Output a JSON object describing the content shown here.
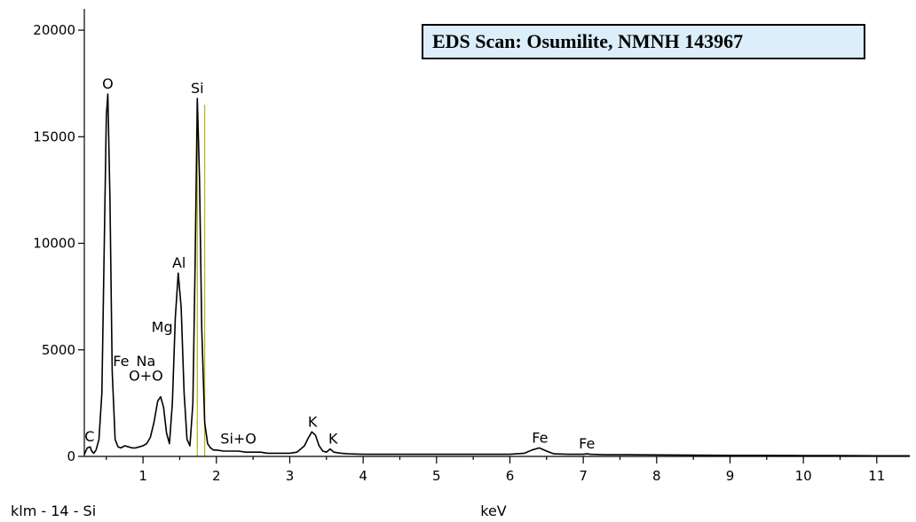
{
  "chart_data": {
    "type": "line",
    "title": "EDS Scan:  Osumilite, NMNH 143967",
    "xlabel": "keV",
    "ylabel": "",
    "footer_left": "klm - 14 - Si",
    "xlim": [
      0.2,
      11.45
    ],
    "ylim": [
      0,
      21000
    ],
    "xticks": [
      1,
      2,
      3,
      4,
      5,
      6,
      7,
      8,
      9,
      10,
      11
    ],
    "yticks": [
      0,
      5000,
      10000,
      15000,
      20000
    ],
    "grid": false,
    "colors": {
      "spectrum": "#000000",
      "si_marker": "#b8b81e",
      "title_box": "#dbeefa"
    },
    "series": [
      {
        "values_note": "",
        "x": [
          0.2,
          0.24,
          0.28,
          0.3,
          0.33,
          0.36,
          0.4,
          0.44,
          0.47,
          0.5,
          0.52,
          0.55,
          0.58,
          0.62,
          0.66,
          0.7,
          0.75,
          0.8,
          0.85,
          0.9,
          0.95,
          1.0,
          1.05,
          1.1,
          1.15,
          1.2,
          1.24,
          1.28,
          1.32,
          1.36,
          1.4,
          1.44,
          1.48,
          1.52,
          1.56,
          1.6,
          1.64,
          1.68,
          1.71,
          1.74,
          1.77,
          1.8,
          1.84,
          1.88,
          1.92,
          1.96,
          2.0,
          2.1,
          2.2,
          2.3,
          2.4,
          2.5,
          2.6,
          2.7,
          2.8,
          2.9,
          3.0,
          3.1,
          3.2,
          3.25,
          3.3,
          3.35,
          3.4,
          3.45,
          3.5,
          3.55,
          3.6,
          3.7,
          3.8,
          4.0,
          4.5,
          5.0,
          5.5,
          6.0,
          6.2,
          6.3,
          6.4,
          6.5,
          6.6,
          6.8,
          7.0,
          7.05,
          7.1,
          7.3,
          7.6,
          8.0,
          8.5,
          9.0,
          9.5,
          10.0,
          10.5,
          11.0,
          11.45
        ],
        "y": [
          100,
          400,
          450,
          250,
          150,
          300,
          800,
          3000,
          9500,
          16000,
          17000,
          12000,
          4000,
          800,
          450,
          400,
          500,
          450,
          400,
          400,
          450,
          500,
          600,
          900,
          1600,
          2600,
          2800,
          2300,
          1100,
          600,
          2500,
          6500,
          8600,
          7000,
          3000,
          800,
          500,
          2500,
          9000,
          16800,
          13000,
          6000,
          1600,
          600,
          400,
          300,
          300,
          250,
          250,
          250,
          200,
          200,
          200,
          150,
          150,
          150,
          150,
          200,
          500,
          850,
          1150,
          1000,
          500,
          250,
          200,
          350,
          200,
          150,
          120,
          100,
          100,
          100,
          100,
          100,
          150,
          300,
          400,
          250,
          120,
          100,
          100,
          120,
          100,
          80,
          80,
          70,
          60,
          50,
          50,
          40,
          40,
          30,
          30
        ]
      }
    ],
    "peak_labels": [
      {
        "text": "C",
        "x": 0.27,
        "y": 450
      },
      {
        "text": "O",
        "x": 0.52,
        "y": 17000
      },
      {
        "text": "Fe",
        "x": 0.7,
        "y": 4000
      },
      {
        "text": "Na",
        "x": 1.04,
        "y": 4000
      },
      {
        "text": "O+O",
        "x": 1.04,
        "y": 3300
      },
      {
        "text": "Mg",
        "x": 1.26,
        "y": 5600
      },
      {
        "text": "Al",
        "x": 1.49,
        "y": 8600
      },
      {
        "text": "Si",
        "x": 1.74,
        "y": 16800
      },
      {
        "text": "Si+O",
        "x": 2.3,
        "y": 350
      },
      {
        "text": "K",
        "x": 3.31,
        "y": 1150
      },
      {
        "text": "K",
        "x": 3.59,
        "y": 350
      },
      {
        "text": "Fe",
        "x": 6.41,
        "y": 400
      },
      {
        "text": "Fe",
        "x": 7.05,
        "y": 120
      }
    ],
    "markers": [
      {
        "name": "Si K-line",
        "x": 1.74
      },
      {
        "name": "Si K-line",
        "x": 1.84
      }
    ]
  }
}
